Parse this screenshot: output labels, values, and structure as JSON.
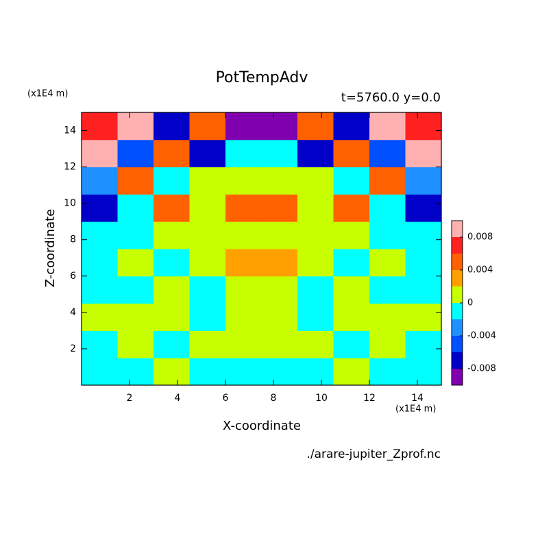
{
  "chart_data": {
    "type": "contour",
    "title": "PotTempAdv",
    "subtitle": "t=5760.0 y=0.0",
    "x_label": "X-coordinate",
    "y_label": "Z-coordinate",
    "x_unit": "(x1E4 m)",
    "y_unit": "(x1E4 m)",
    "source": "./arare-jupiter_Zprof.nc",
    "xlim": [
      0,
      15
    ],
    "ylim": [
      0,
      15
    ],
    "xticks": [
      2,
      4,
      6,
      8,
      10,
      12,
      14
    ],
    "yticks": [
      2,
      4,
      6,
      8,
      10,
      12,
      14
    ],
    "x": [
      0.75,
      2.25,
      3.75,
      5.25,
      6.75,
      8.25,
      9.75,
      11.25,
      12.75,
      14.25
    ],
    "y": [
      0.75,
      2.25,
      3.75,
      5.25,
      6.75,
      8.25,
      9.75,
      11.25,
      12.75,
      14.25
    ],
    "z": [
      [
        -0.001,
        -0.001,
        0.001,
        -0.001,
        -0.001,
        -0.001,
        -0.001,
        0.001,
        -0.001,
        -0.001
      ],
      [
        -0.001,
        0.001,
        -0.001,
        0.001,
        0.001,
        0.001,
        0.001,
        -0.001,
        0.001,
        -0.001
      ],
      [
        0.001,
        0.001,
        0.001,
        -0.001,
        0.001,
        0.001,
        -0.001,
        0.001,
        0.001,
        0.001
      ],
      [
        -0.001,
        -0.001,
        0.001,
        -0.001,
        0.001,
        0.001,
        -0.001,
        0.001,
        -0.001,
        -0.001
      ],
      [
        -0.001,
        0.001,
        -0.001,
        0.001,
        0.003,
        0.003,
        0.001,
        -0.001,
        0.001,
        -0.001
      ],
      [
        -0.001,
        -0.001,
        0.001,
        0.001,
        0.001,
        0.001,
        0.001,
        0.001,
        -0.001,
        -0.001
      ],
      [
        -0.007,
        -0.001,
        0.005,
        0.001,
        0.005,
        0.005,
        0.001,
        0.005,
        -0.001,
        -0.007
      ],
      [
        -0.003,
        0.005,
        -0.001,
        0.001,
        0.001,
        0.001,
        0.001,
        -0.001,
        0.005,
        -0.003
      ],
      [
        0.009,
        -0.005,
        0.005,
        -0.007,
        -0.001,
        -0.001,
        -0.007,
        0.005,
        -0.005,
        0.009
      ],
      [
        0.007,
        0.009,
        -0.007,
        0.005,
        -0.009,
        -0.009,
        0.005,
        -0.007,
        0.009,
        0.007
      ]
    ],
    "levels": [
      -0.01,
      -0.008,
      -0.006,
      -0.004,
      -0.002,
      0,
      0.002,
      0.004,
      0.006,
      0.008,
      0.01
    ],
    "colors": [
      "#8000b0",
      "#0000c8",
      "#0050ff",
      "#1e90ff",
      "#00ffff",
      "#c8ff00",
      "#ffa000",
      "#ff6000",
      "#ff2020",
      "#ffb0b0"
    ],
    "colorbar_ticks": [
      -0.008,
      -0.004,
      0,
      0.004,
      0.008
    ]
  }
}
